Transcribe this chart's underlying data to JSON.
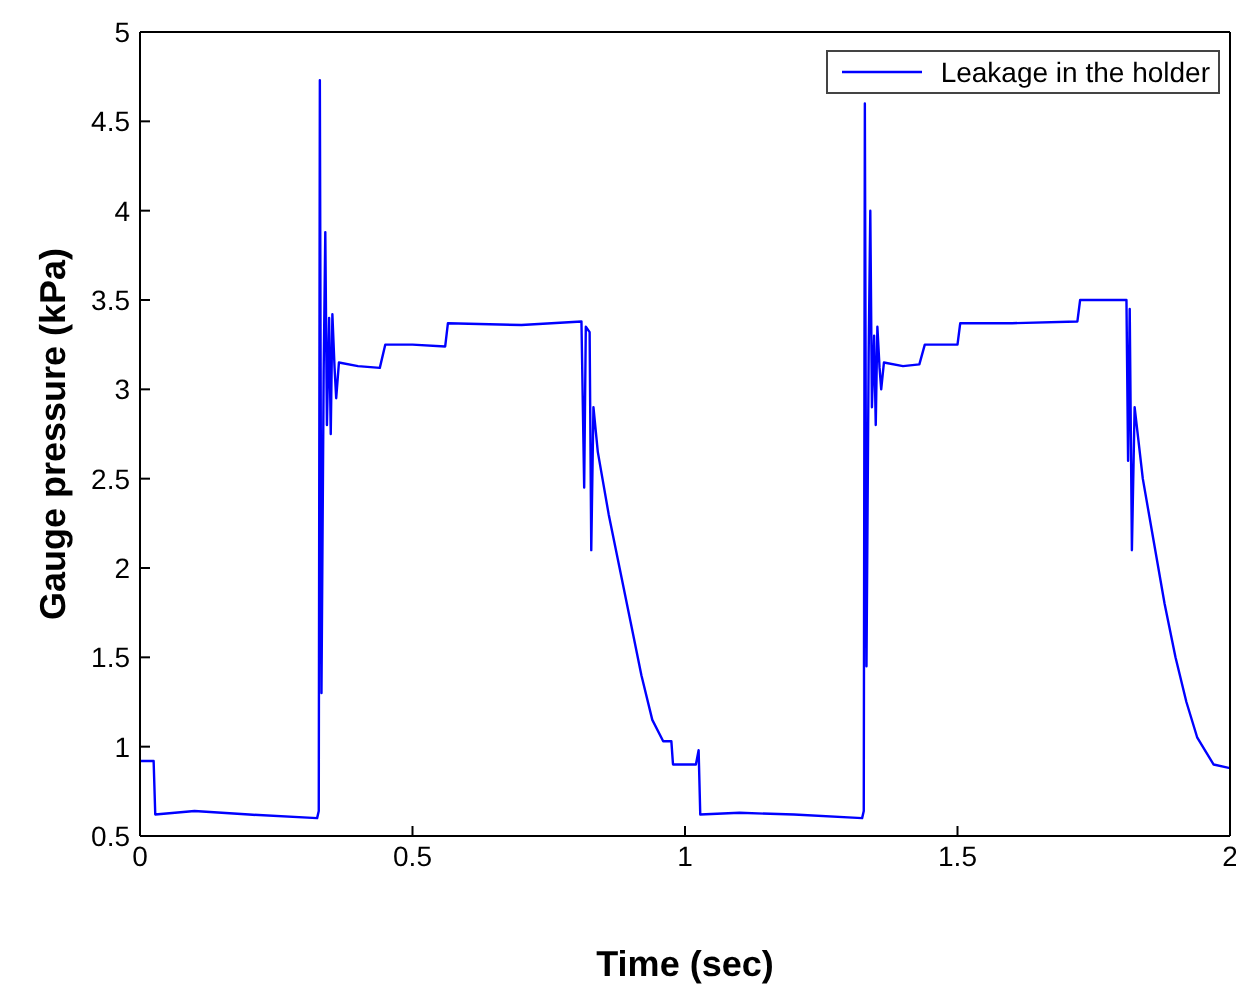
{
  "chart_data": {
    "type": "line",
    "xlabel": "Time (sec)",
    "ylabel": "Gauge pressure (kPa)",
    "xlim": [
      0,
      2
    ],
    "xticks": [
      0,
      0.5,
      1,
      1.5,
      2
    ],
    "ylim": [
      0.5,
      5
    ],
    "yticks": [
      0.5,
      1,
      1.5,
      2,
      2.5,
      3,
      3.5,
      4,
      4.5,
      5
    ],
    "grid": false,
    "legend": "top right",
    "marker": "none",
    "line_style": "solid",
    "series": [
      {
        "name": "Leakage in the holder",
        "color": "#0000ff",
        "x": [
          0,
          0.025,
          0.028,
          0.1,
          0.2,
          0.325,
          0.328,
          0.33,
          0.333,
          0.337,
          0.34,
          0.343,
          0.347,
          0.35,
          0.353,
          0.357,
          0.36,
          0.365,
          0.4,
          0.44,
          0.45,
          0.5,
          0.56,
          0.565,
          0.7,
          0.81,
          0.815,
          0.818,
          0.825,
          0.828,
          0.832,
          0.84,
          0.86,
          0.88,
          0.9,
          0.92,
          0.94,
          0.96,
          0.975,
          0.978,
          1.02,
          1.025,
          1.028,
          1.1,
          1.2,
          1.325,
          1.328,
          1.33,
          1.333,
          1.337,
          1.34,
          1.343,
          1.347,
          1.35,
          1.353,
          1.357,
          1.36,
          1.365,
          1.4,
          1.43,
          1.44,
          1.5,
          1.505,
          1.6,
          1.72,
          1.725,
          1.81,
          1.813,
          1.816,
          1.82,
          1.825,
          1.84,
          1.86,
          1.88,
          1.9,
          1.92,
          1.94,
          1.96,
          1.97,
          2
        ],
        "values": [
          0.92,
          0.92,
          0.62,
          0.64,
          0.62,
          0.6,
          0.64,
          4.73,
          1.3,
          3.1,
          3.88,
          2.8,
          3.4,
          2.75,
          3.42,
          3.12,
          2.95,
          3.15,
          3.13,
          3.12,
          3.25,
          3.25,
          3.24,
          3.37,
          3.36,
          3.38,
          2.45,
          3.35,
          3.32,
          2.1,
          2.9,
          2.65,
          2.3,
          2,
          1.7,
          1.4,
          1.15,
          1.03,
          1.03,
          0.9,
          0.9,
          0.98,
          0.62,
          0.63,
          0.62,
          0.6,
          0.64,
          4.6,
          1.45,
          3.2,
          4.0,
          2.9,
          3.3,
          2.8,
          3.35,
          3.12,
          3.0,
          3.15,
          3.13,
          3.14,
          3.25,
          3.25,
          3.37,
          3.37,
          3.38,
          3.5,
          3.5,
          2.6,
          3.45,
          2.1,
          2.9,
          2.5,
          2.15,
          1.8,
          1.5,
          1.25,
          1.05,
          0.95,
          0.9,
          0.88
        ]
      }
    ]
  }
}
